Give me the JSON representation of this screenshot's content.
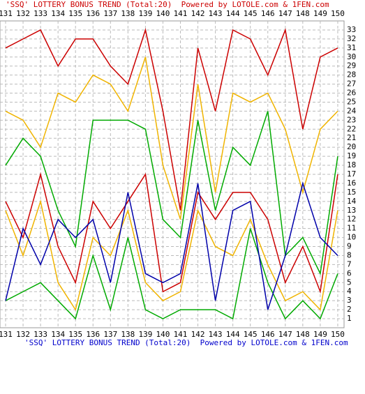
{
  "chart_data": {
    "type": "line",
    "title": "'SSQ' LOTTERY BONUS TREND (Total:20)  Powered by LOTOLE.com & 1FEN.com",
    "categories": [
      "131",
      "132",
      "133",
      "134",
      "135",
      "136",
      "137",
      "138",
      "139",
      "140",
      "141",
      "142",
      "143",
      "144",
      "145",
      "146",
      "147",
      "148",
      "149",
      "150"
    ],
    "series": [
      {
        "color": "#cc0000",
        "values": [
          31,
          32,
          33,
          29,
          32,
          32,
          29,
          27,
          33,
          24,
          13,
          31,
          24,
          33,
          32,
          28,
          33,
          22,
          30,
          31
        ]
      },
      {
        "color": "#f0b400",
        "values": [
          24,
          23,
          20,
          26,
          25,
          28,
          27,
          24,
          30,
          18,
          12,
          27,
          15,
          26,
          25,
          26,
          22,
          15,
          22,
          24
        ]
      },
      {
        "color": "#00aa00",
        "values": [
          18,
          21,
          19,
          13,
          9,
          23,
          23,
          23,
          22,
          12,
          10,
          23,
          13,
          20,
          18,
          24,
          8,
          10,
          6,
          19
        ]
      },
      {
        "color": "#cc0000",
        "values": [
          14,
          10,
          17,
          9,
          5,
          14,
          11,
          14,
          17,
          4,
          5,
          15,
          12,
          15,
          15,
          12,
          5,
          9,
          4,
          17
        ]
      },
      {
        "color": "#f0b400",
        "values": [
          13,
          8,
          14,
          5,
          2,
          10,
          8,
          13,
          5,
          3,
          4,
          13,
          9,
          8,
          12,
          7,
          3,
          4,
          2,
          13
        ]
      },
      {
        "color": "#00aa00",
        "values": [
          3,
          4,
          5,
          3,
          1,
          8,
          2,
          10,
          2,
          1,
          2,
          2,
          2,
          1,
          11,
          5,
          1,
          3,
          1,
          6
        ]
      },
      {
        "color": "#0000aa",
        "values": [
          3,
          11,
          7,
          12,
          10,
          12,
          5,
          15,
          6,
          5,
          6,
          16,
          3,
          13,
          14,
          2,
          8,
          16,
          10,
          8
        ]
      }
    ],
    "ylim": [
      0,
      34
    ],
    "yticks": [
      1,
      2,
      3,
      4,
      5,
      6,
      7,
      8,
      9,
      10,
      11,
      12,
      13,
      14,
      15,
      16,
      17,
      18,
      19,
      20,
      21,
      22,
      23,
      24,
      25,
      26,
      27,
      28,
      29,
      30,
      31,
      32,
      33
    ],
    "grid": true
  }
}
